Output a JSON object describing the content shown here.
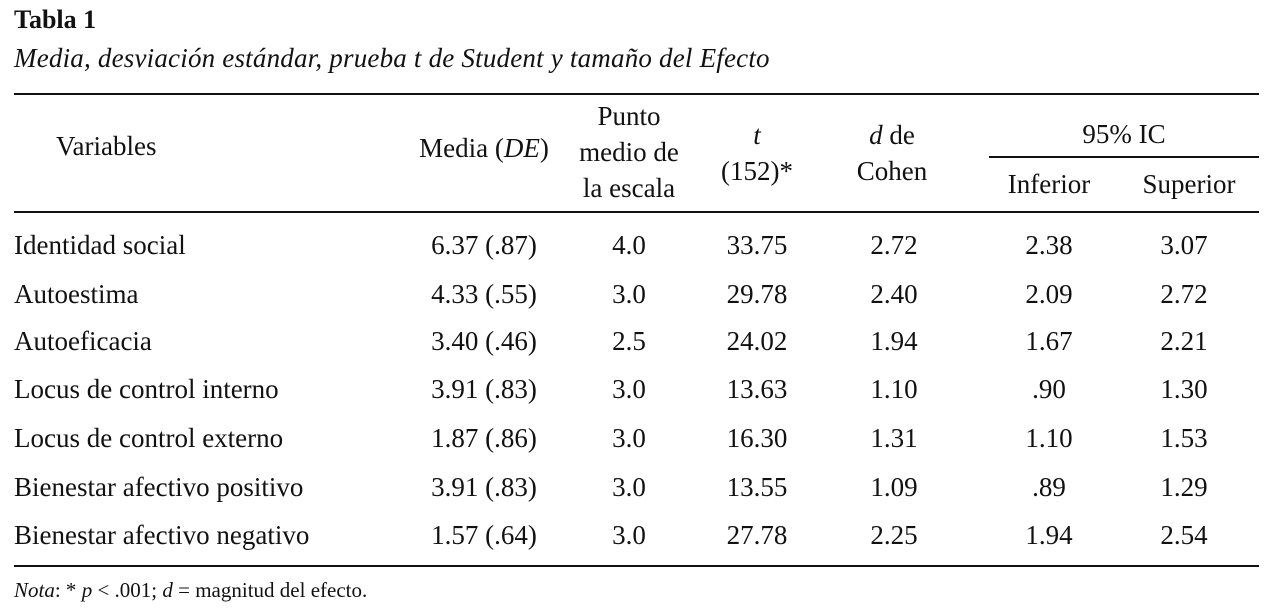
{
  "table": {
    "title": "Tabla 1",
    "subtitle": "Media, desviación estándar, prueba t de Student y tamaño del Efecto",
    "headers": {
      "variables": "Variables",
      "media_prefix": "Media (",
      "media_de": "DE",
      "media_suffix": ")",
      "punto_line1": "Punto",
      "punto_line2": "medio de",
      "punto_line3": "la escala",
      "t_symbol": "t",
      "t_df": "(152)*",
      "d_symbol": "d",
      "d_suffix": " de",
      "d_line2": "Cohen",
      "ic_group": "95% IC",
      "ic_inferior": "Inferior",
      "ic_superior": "Superior"
    },
    "rows": [
      {
        "variable": "Identidad social",
        "media": "6.37 (.87)",
        "punto": "4.0",
        "t": "33.75",
        "d": "2.72",
        "inferior": "2.38",
        "superior": "3.07"
      },
      {
        "variable": "Autoestima",
        "media": "4.33 (.55)",
        "punto": "3.0",
        "t": "29.78",
        "d": "2.40",
        "inferior": "2.09",
        "superior": "2.72"
      },
      {
        "variable": "Autoeficacia",
        "media": "3.40 (.46)",
        "punto": "2.5",
        "t": "24.02",
        "d": "1.94",
        "inferior": "1.67",
        "superior": "2.21"
      },
      {
        "variable": "Locus de control interno",
        "media": "3.91 (.83)",
        "punto": "3.0",
        "t": "13.63",
        "d": "1.10",
        "inferior": ".90",
        "superior": "1.30"
      },
      {
        "variable": "Locus de control externo",
        "media": "1.87 (.86)",
        "punto": "3.0",
        "t": "16.30",
        "d": "1.31",
        "inferior": "1.10",
        "superior": "1.53"
      },
      {
        "variable": "Bienestar afectivo positivo",
        "media": "3.91 (.83)",
        "punto": "3.0",
        "t": "13.55",
        "d": "1.09",
        "inferior": ".89",
        "superior": "1.29"
      },
      {
        "variable": "Bienestar afectivo negativo",
        "media": "1.57 (.64)",
        "punto": "3.0",
        "t": "27.78",
        "d": "2.25",
        "inferior": "1.94",
        "superior": "2.54"
      }
    ],
    "note": {
      "label": "Nota",
      "after_label": ": * ",
      "p_symbol": "p",
      "p_text": " < .001; ",
      "d_symbol": "d",
      "d_text": " = magnitud del efecto."
    }
  }
}
